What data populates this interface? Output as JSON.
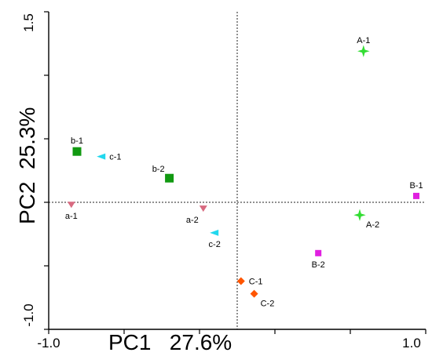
{
  "chart_data": {
    "type": "scatter",
    "title": "",
    "xlabel": "PC1   27.6%",
    "ylabel": "PC2  25.3%",
    "xlim": [
      -1.0,
      1.0
    ],
    "ylim": [
      -1.0,
      1.5
    ],
    "x_tick_labels": [
      "-1.0",
      "1.0"
    ],
    "y_tick_labels": [
      "1.5",
      "-1.0"
    ],
    "minor_x_ticks": [
      -0.6,
      -0.2,
      0.2,
      0.6
    ],
    "minor_y_ticks": [
      -0.5,
      0.0,
      0.5,
      1.0
    ],
    "zero_lines": true,
    "grid": false,
    "points": [
      {
        "label": "A-1",
        "x": 0.67,
        "y": 1.19,
        "marker": "star",
        "color": "#33dd33",
        "label_pos": "above"
      },
      {
        "label": "A-2",
        "x": 0.65,
        "y": -0.1,
        "marker": "star",
        "color": "#33dd33",
        "label_pos": "below-right"
      },
      {
        "label": "B-1",
        "x": 0.95,
        "y": 0.05,
        "marker": "square",
        "color": "#e020e0",
        "label_pos": "above"
      },
      {
        "label": "B-2",
        "x": 0.43,
        "y": -0.4,
        "marker": "square",
        "color": "#e020e0",
        "label_pos": "below"
      },
      {
        "label": "C-1",
        "x": 0.02,
        "y": -0.62,
        "marker": "diamond",
        "color": "#ff5500",
        "label_pos": "right"
      },
      {
        "label": "C-2",
        "x": 0.09,
        "y": -0.72,
        "marker": "diamond",
        "color": "#ff5500",
        "label_pos": "below-right"
      },
      {
        "label": "a-1",
        "x": -0.88,
        "y": -0.02,
        "marker": "tri-down",
        "color": "#d86a80",
        "label_pos": "below"
      },
      {
        "label": "a-2",
        "x": -0.18,
        "y": -0.05,
        "marker": "tri-down",
        "color": "#d86a80",
        "label_pos": "below-left"
      },
      {
        "label": "b-1",
        "x": -0.85,
        "y": 0.4,
        "marker": "square",
        "color": "#119911",
        "label_pos": "above"
      },
      {
        "label": "b-2",
        "x": -0.36,
        "y": 0.19,
        "marker": "square",
        "color": "#119911",
        "label_pos": "above-left"
      },
      {
        "label": "c-1",
        "x": -0.72,
        "y": 0.36,
        "marker": "tri-left",
        "color": "#22d8ee",
        "label_pos": "right"
      },
      {
        "label": "c-2",
        "x": -0.12,
        "y": -0.24,
        "marker": "tri-left",
        "color": "#22d8ee",
        "label_pos": "below"
      }
    ]
  }
}
